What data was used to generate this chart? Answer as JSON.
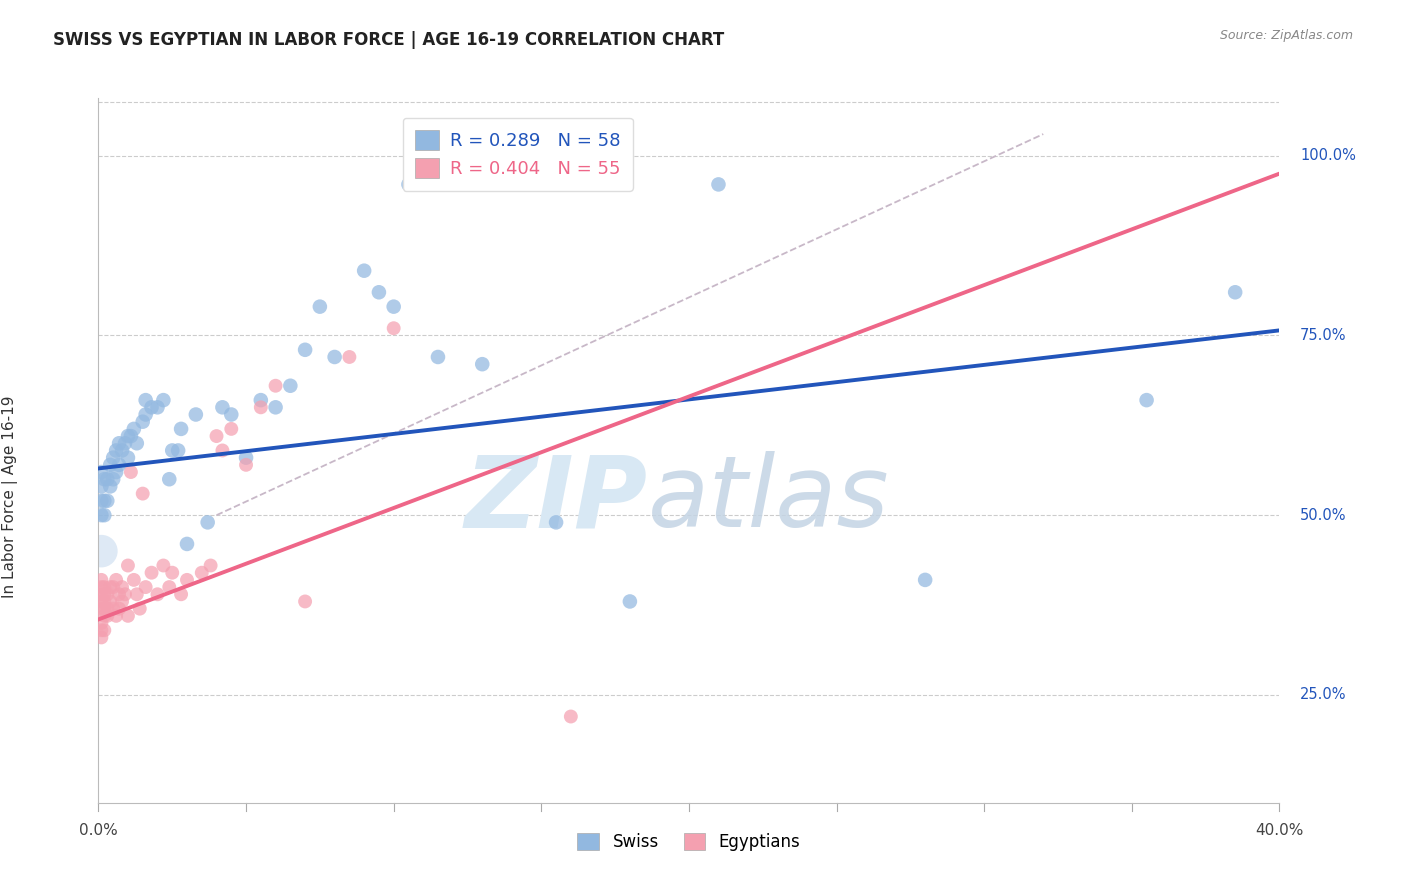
{
  "title": "SWISS VS EGYPTIAN IN LABOR FORCE | AGE 16-19 CORRELATION CHART",
  "source": "Source: ZipAtlas.com",
  "ylabel": "In Labor Force | Age 16-19",
  "swiss_color": "#92B8E0",
  "egyptian_color": "#F4A0B0",
  "swiss_line_color": "#2255BB",
  "egyptian_line_color": "#EE6688",
  "dashed_line_color": "#C8B8C8",
  "right_axis_color": "#2255BB",
  "background_color": "#FFFFFF",
  "grid_color": "#CCCCCC",
  "title_color": "#222222",
  "source_color": "#888888",
  "swiss_R": 0.289,
  "swiss_N": 58,
  "egyptian_R": 0.404,
  "egyptian_N": 55,
  "swiss_intercept": 0.565,
  "swiss_slope": 0.48,
  "egyptian_intercept": 0.355,
  "egyptian_slope": 1.55,
  "swiss_points_x": [
    0.001,
    0.001,
    0.001,
    0.001,
    0.002,
    0.002,
    0.002,
    0.003,
    0.003,
    0.004,
    0.004,
    0.005,
    0.005,
    0.006,
    0.006,
    0.007,
    0.007,
    0.008,
    0.009,
    0.01,
    0.01,
    0.011,
    0.012,
    0.013,
    0.015,
    0.016,
    0.016,
    0.018,
    0.02,
    0.022,
    0.024,
    0.025,
    0.027,
    0.028,
    0.03,
    0.033,
    0.037,
    0.042,
    0.045,
    0.05,
    0.055,
    0.06,
    0.065,
    0.07,
    0.075,
    0.08,
    0.09,
    0.095,
    0.1,
    0.105,
    0.115,
    0.13,
    0.155,
    0.18,
    0.21,
    0.28,
    0.355,
    0.385
  ],
  "swiss_points_y": [
    0.5,
    0.52,
    0.54,
    0.56,
    0.5,
    0.52,
    0.55,
    0.52,
    0.55,
    0.54,
    0.57,
    0.55,
    0.58,
    0.56,
    0.59,
    0.57,
    0.6,
    0.59,
    0.6,
    0.58,
    0.61,
    0.61,
    0.62,
    0.6,
    0.63,
    0.64,
    0.66,
    0.65,
    0.65,
    0.66,
    0.55,
    0.59,
    0.59,
    0.62,
    0.46,
    0.64,
    0.49,
    0.65,
    0.64,
    0.58,
    0.66,
    0.65,
    0.68,
    0.73,
    0.79,
    0.72,
    0.84,
    0.81,
    0.79,
    0.96,
    0.72,
    0.71,
    0.49,
    0.38,
    0.96,
    0.41,
    0.66,
    0.81
  ],
  "egyptian_points_x": [
    0.001,
    0.001,
    0.001,
    0.001,
    0.001,
    0.001,
    0.001,
    0.001,
    0.002,
    0.002,
    0.002,
    0.002,
    0.002,
    0.002,
    0.003,
    0.003,
    0.003,
    0.004,
    0.004,
    0.005,
    0.005,
    0.006,
    0.006,
    0.007,
    0.007,
    0.008,
    0.008,
    0.009,
    0.01,
    0.01,
    0.011,
    0.012,
    0.013,
    0.014,
    0.015,
    0.016,
    0.018,
    0.02,
    0.022,
    0.024,
    0.025,
    0.028,
    0.03,
    0.035,
    0.038,
    0.04,
    0.042,
    0.045,
    0.05,
    0.055,
    0.06,
    0.07,
    0.085,
    0.1,
    0.16
  ],
  "egyptian_points_y": [
    0.37,
    0.38,
    0.39,
    0.4,
    0.41,
    0.35,
    0.34,
    0.33,
    0.37,
    0.38,
    0.39,
    0.4,
    0.36,
    0.34,
    0.37,
    0.39,
    0.36,
    0.38,
    0.4,
    0.4,
    0.37,
    0.41,
    0.36,
    0.37,
    0.39,
    0.38,
    0.4,
    0.39,
    0.43,
    0.36,
    0.56,
    0.41,
    0.39,
    0.37,
    0.53,
    0.4,
    0.42,
    0.39,
    0.43,
    0.4,
    0.42,
    0.39,
    0.41,
    0.42,
    0.43,
    0.61,
    0.59,
    0.62,
    0.57,
    0.65,
    0.68,
    0.38,
    0.72,
    0.76,
    0.22
  ]
}
